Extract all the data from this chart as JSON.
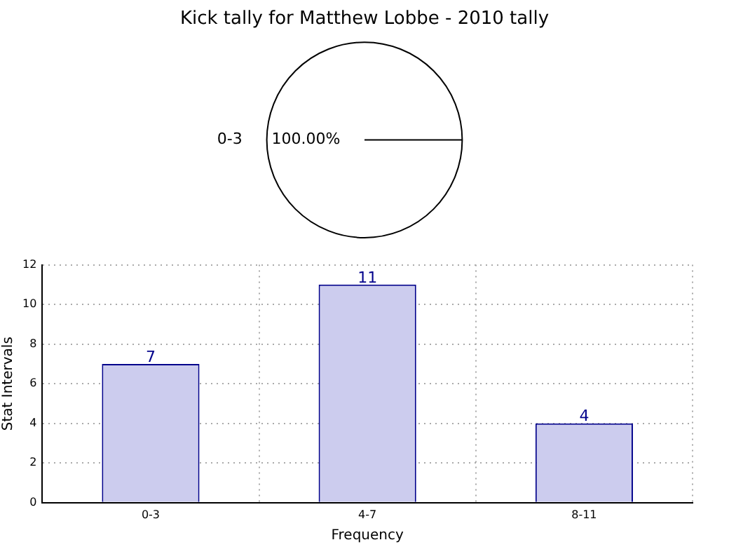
{
  "chart_data": [
    {
      "type": "pie",
      "title": "Kick tally for Matthew Lobbe - 2010 tally",
      "categories": [
        "0-3"
      ],
      "values": [
        100
      ],
      "colors": [
        "#ffffff"
      ],
      "value_labels": [
        "100.00%"
      ]
    },
    {
      "type": "bar",
      "categories": [
        "0-3",
        "4-7",
        "8-11"
      ],
      "values": [
        7,
        11,
        4
      ],
      "color": "#ccccee",
      "xlabel": "Frequency",
      "ylabel": "Stat Intervals",
      "ylim": [
        0,
        12
      ],
      "yticks": [
        0,
        2,
        4,
        6,
        8,
        10,
        12
      ],
      "grid": true,
      "data_labels": true
    }
  ]
}
